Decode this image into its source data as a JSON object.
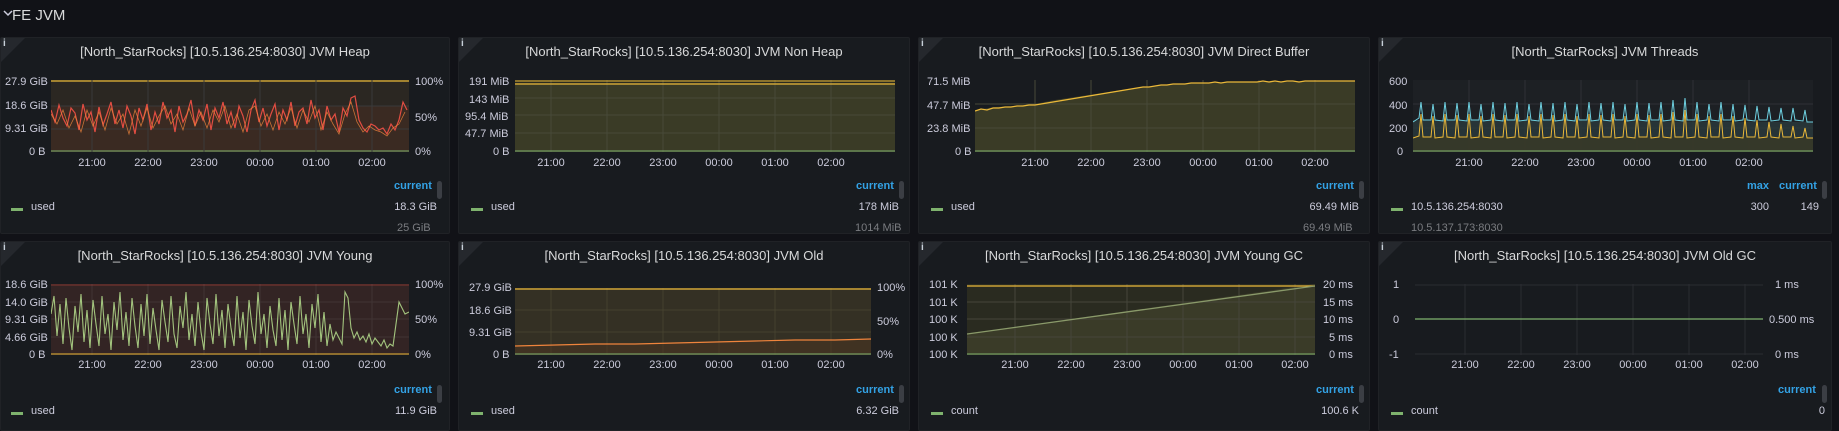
{
  "row": {
    "title": "FE JVM",
    "chevron_icon": "chevron-down-icon"
  },
  "panels": {
    "heap": {
      "title": "[North_StarRocks] [10.5.136.254:8030] JVM Heap",
      "yleft": [
        "27.9 GiB",
        "18.6 GiB",
        "9.31 GiB",
        "0 B"
      ],
      "yright": [
        "100%",
        "50%",
        "0%"
      ],
      "xticks": [
        "21:00",
        "22:00",
        "23:00",
        "00:00",
        "01:00",
        "02:00"
      ],
      "legend_header": "current",
      "legend": [
        {
          "name": "used",
          "current": "18.3 GiB"
        }
      ],
      "legend_cut": "25 GiB"
    },
    "nonheap": {
      "title": "[North_StarRocks] [10.5.136.254:8030] JVM Non Heap",
      "yleft": [
        "191 MiB",
        "143 MiB",
        "95.4 MiB",
        "47.7 MiB",
        "0 B"
      ],
      "xticks": [
        "21:00",
        "22:00",
        "23:00",
        "00:00",
        "01:00",
        "02:00"
      ],
      "legend_header": "current",
      "legend": [
        {
          "name": "used",
          "current": "178 MiB"
        }
      ],
      "legend_cut": "1014 MiB"
    },
    "direct": {
      "title": "[North_StarRocks] [10.5.136.254:8030] JVM Direct Buffer",
      "yleft": [
        "71.5 MiB",
        "47.7 MiB",
        "23.8 MiB",
        "0 B"
      ],
      "xticks": [
        "21:00",
        "22:00",
        "23:00",
        "00:00",
        "01:00",
        "02:00"
      ],
      "legend_header": "current",
      "legend": [
        {
          "name": "used",
          "current": "69.49 MiB"
        }
      ],
      "legend_cut": "69.49 MiB"
    },
    "threads": {
      "title": "[North_StarRocks] JVM Threads",
      "yleft": [
        "600",
        "400",
        "200",
        "0"
      ],
      "xticks": [
        "21:00",
        "22:00",
        "23:00",
        "00:00",
        "01:00",
        "02:00"
      ],
      "legend_header_max": "max",
      "legend_header": "current",
      "legend": [
        {
          "name": "10.5.136.254:8030",
          "max": "300",
          "current": "149"
        }
      ],
      "legend_cut": "10.5.137.173:8030"
    },
    "young": {
      "title": "[North_StarRocks] [10.5.136.254:8030] JVM Young",
      "yleft": [
        "18.6 GiB",
        "14.0 GiB",
        "9.31 GiB",
        "4.66 GiB",
        "0 B"
      ],
      "yright": [
        "100%",
        "50%",
        "0%"
      ],
      "xticks": [
        "21:00",
        "22:00",
        "23:00",
        "00:00",
        "01:00",
        "02:00"
      ],
      "legend_header": "current",
      "legend": [
        {
          "name": "used",
          "current": "11.9 GiB"
        }
      ]
    },
    "old": {
      "title": "[North_StarRocks] [10.5.136.254:8030] JVM Old",
      "yleft": [
        "27.9 GiB",
        "18.6 GiB",
        "9.31 GiB",
        "0 B"
      ],
      "yright": [
        "100%",
        "50%",
        "0%"
      ],
      "xticks": [
        "21:00",
        "22:00",
        "23:00",
        "00:00",
        "01:00",
        "02:00"
      ],
      "legend_header": "current",
      "legend": [
        {
          "name": "used",
          "current": "6.32 GiB"
        }
      ]
    },
    "younggc": {
      "title": "[North_StarRocks] [10.5.136.254:8030] JVM Young GC",
      "yleft": [
        "101 K",
        "101 K",
        "100 K",
        "100 K",
        "100 K"
      ],
      "yright": [
        "20 ms",
        "15 ms",
        "10 ms",
        "5 ms",
        "0 ms"
      ],
      "xticks": [
        "21:00",
        "22:00",
        "23:00",
        "00:00",
        "01:00",
        "02:00"
      ],
      "legend_header": "current",
      "legend": [
        {
          "name": "count",
          "current": "100.6 K"
        }
      ]
    },
    "oldgc": {
      "title": "[North_StarRocks] [10.5.136.254:8030] JVM Old GC",
      "yleft": [
        "1",
        "0",
        "-1"
      ],
      "yright": [
        "1 ms",
        "0.500 ms",
        "0 ms"
      ],
      "xticks": [
        "21:00",
        "22:00",
        "23:00",
        "00:00",
        "01:00",
        "02:00"
      ],
      "legend_header": "current",
      "legend": [
        {
          "name": "count",
          "current": "0"
        }
      ]
    }
  },
  "colors": {
    "green": "#7eb26d",
    "yellow": "#eab839",
    "orange": "#ef843c",
    "red": "#e24d42",
    "blue": "#6ed0e0",
    "header": "#33a2e5"
  }
}
